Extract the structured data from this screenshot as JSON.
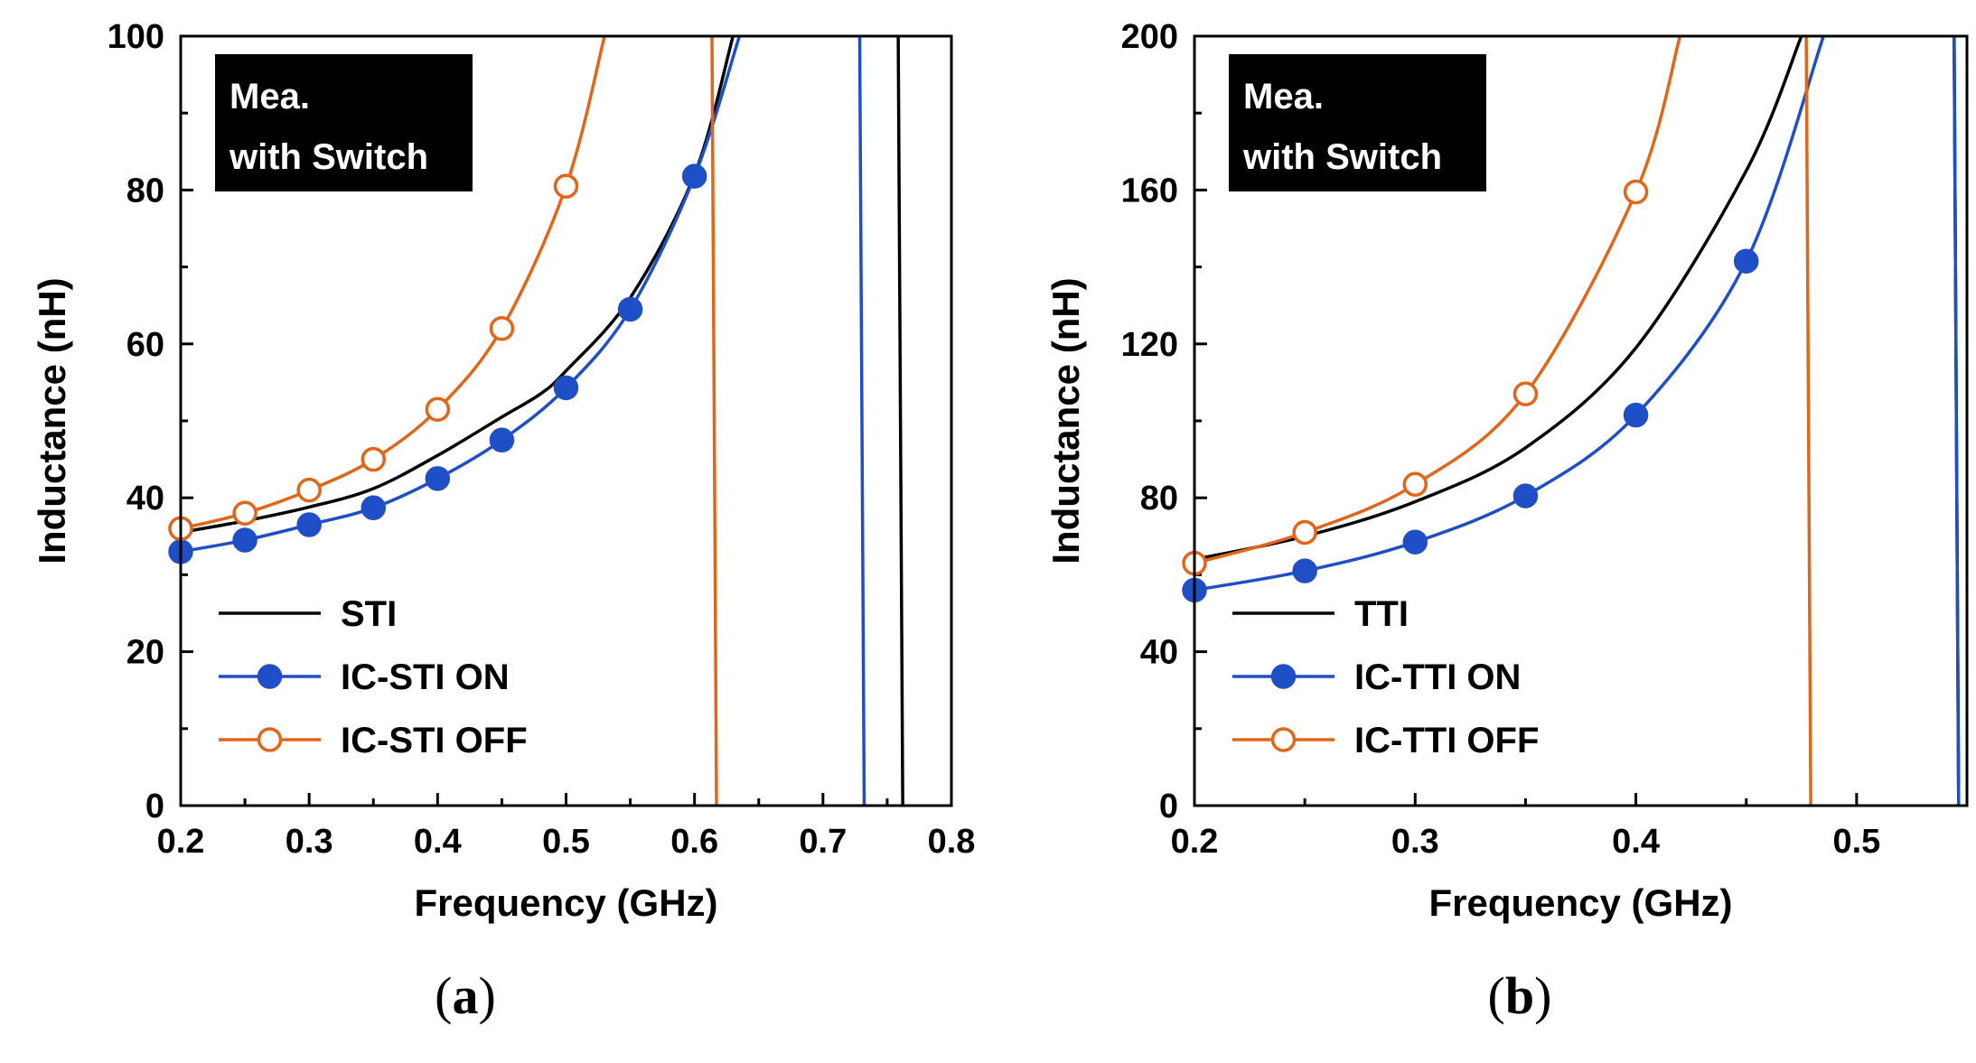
{
  "colors": {
    "black": "#000000",
    "blue": "#1f4fc7",
    "orange": "#e0661a"
  },
  "chart_data": [
    {
      "id": "a",
      "type": "line",
      "panel_label": "a",
      "xlabel": "Frequency (GHz)",
      "ylabel": "Inductance (nH)",
      "xlim": [
        0.2,
        0.8
      ],
      "ylim": [
        0,
        100
      ],
      "xticks": [
        "0.2",
        "0.3",
        "0.4",
        "0.5",
        "0.6",
        "0.7",
        "0.8"
      ],
      "yticks": [
        "0",
        "20",
        "40",
        "60",
        "80",
        "100"
      ],
      "annotation": [
        "Mea.",
        "with Switch"
      ],
      "legend_position": "lower-left",
      "series": [
        {
          "name": "STI",
          "color": "black",
          "marker": "none",
          "x": [
            0.2,
            0.25,
            0.3,
            0.35,
            0.4,
            0.45,
            0.48,
            0.5,
            0.55,
            0.6,
            0.63
          ],
          "y": [
            35.5,
            37,
            38.8,
            41.2,
            45.5,
            50.5,
            53.5,
            56.5,
            66,
            82,
            100
          ],
          "asymptote": 0.76
        },
        {
          "name": "IC-STI ON",
          "color": "blue",
          "marker": "filled",
          "x": [
            0.2,
            0.25,
            0.3,
            0.35,
            0.4,
            0.45,
            0.5,
            0.55,
            0.6,
            0.635
          ],
          "y": [
            33,
            34.5,
            36.5,
            38.7,
            42.5,
            47.5,
            54.3,
            64.5,
            81.8,
            100
          ],
          "marker_x": [
            0.2,
            0.25,
            0.3,
            0.35,
            0.4,
            0.45,
            0.5,
            0.55,
            0.6
          ],
          "asymptote": 0.73
        },
        {
          "name": "IC-STI OFF",
          "color": "orange",
          "marker": "open",
          "x": [
            0.2,
            0.25,
            0.3,
            0.35,
            0.4,
            0.45,
            0.5,
            0.53
          ],
          "y": [
            36,
            38,
            41,
            45,
            51.5,
            62,
            80.5,
            100
          ],
          "marker_x": [
            0.2,
            0.25,
            0.3,
            0.35,
            0.4,
            0.45,
            0.5
          ],
          "asymptote": 0.615
        }
      ]
    },
    {
      "id": "b",
      "type": "line",
      "panel_label": "b",
      "xlabel": "Frequency (GHz)",
      "ylabel": "Inductance (nH)",
      "xlim": [
        0.2,
        0.55
      ],
      "ylim": [
        0,
        200
      ],
      "xticks": [
        "0.2",
        "0.3",
        "0.4",
        "0.5"
      ],
      "yticks": [
        "0",
        "40",
        "80",
        "120",
        "160",
        "200"
      ],
      "annotation": [
        "Mea.",
        "with Switch"
      ],
      "legend_position": "lower-left",
      "series": [
        {
          "name": "TTI",
          "color": "black",
          "marker": "none",
          "x": [
            0.2,
            0.25,
            0.3,
            0.35,
            0.4,
            0.45,
            0.475
          ],
          "y": [
            64,
            70,
            79,
            93,
            119,
            165,
            200
          ],
          "asymptote": 0.545
        },
        {
          "name": "IC-TTI ON",
          "color": "blue",
          "marker": "filled",
          "x": [
            0.2,
            0.25,
            0.3,
            0.35,
            0.4,
            0.45,
            0.485
          ],
          "y": [
            56,
            61,
            68.5,
            80.5,
            101.5,
            141.5,
            200
          ],
          "marker_x": [
            0.2,
            0.25,
            0.3,
            0.35,
            0.4,
            0.45
          ],
          "asymptote": 0.545
        },
        {
          "name": "IC-TTI OFF",
          "color": "orange",
          "marker": "open",
          "x": [
            0.2,
            0.25,
            0.3,
            0.35,
            0.4,
            0.42
          ],
          "y": [
            63,
            71,
            83.5,
            107,
            159.5,
            200
          ],
          "marker_x": [
            0.2,
            0.25,
            0.3,
            0.35,
            0.4
          ],
          "asymptote": 0.478
        }
      ]
    }
  ]
}
